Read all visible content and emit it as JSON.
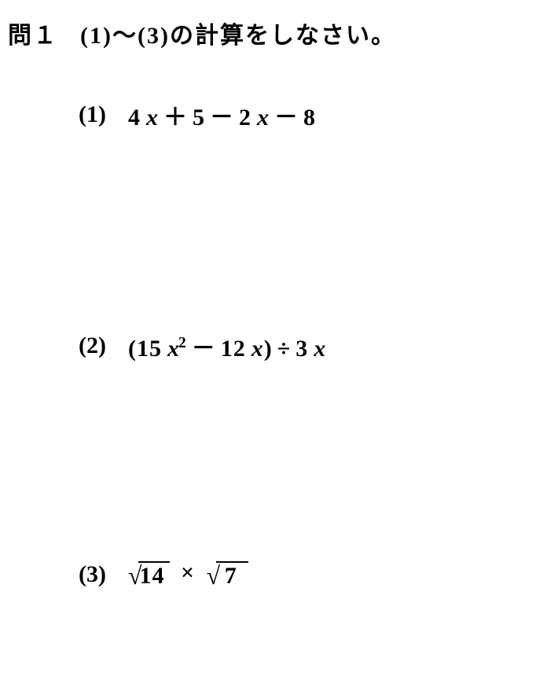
{
  "header": {
    "label": "問１",
    "instruction": "(1)〜(3)の計算をしなさい。"
  },
  "problems": {
    "p1": {
      "num": "(1)",
      "coef1": "4",
      "var1": "x",
      "op1": "＋",
      "const1": "5",
      "op2": "－",
      "coef2": "2",
      "var2": "x",
      "op3": "－",
      "const2": "8"
    },
    "p2": {
      "num": "(2)",
      "lparen": "(",
      "coef1": "15",
      "var1": "x",
      "exp1": "2",
      "op1": "－",
      "coef2": "12",
      "var2": "x",
      "rparen": ")",
      "op2": "÷",
      "coef3": "3",
      "var3": "x"
    },
    "p3": {
      "num": "(3)",
      "rad1": "14",
      "op1": "×",
      "rad2": "7"
    }
  }
}
